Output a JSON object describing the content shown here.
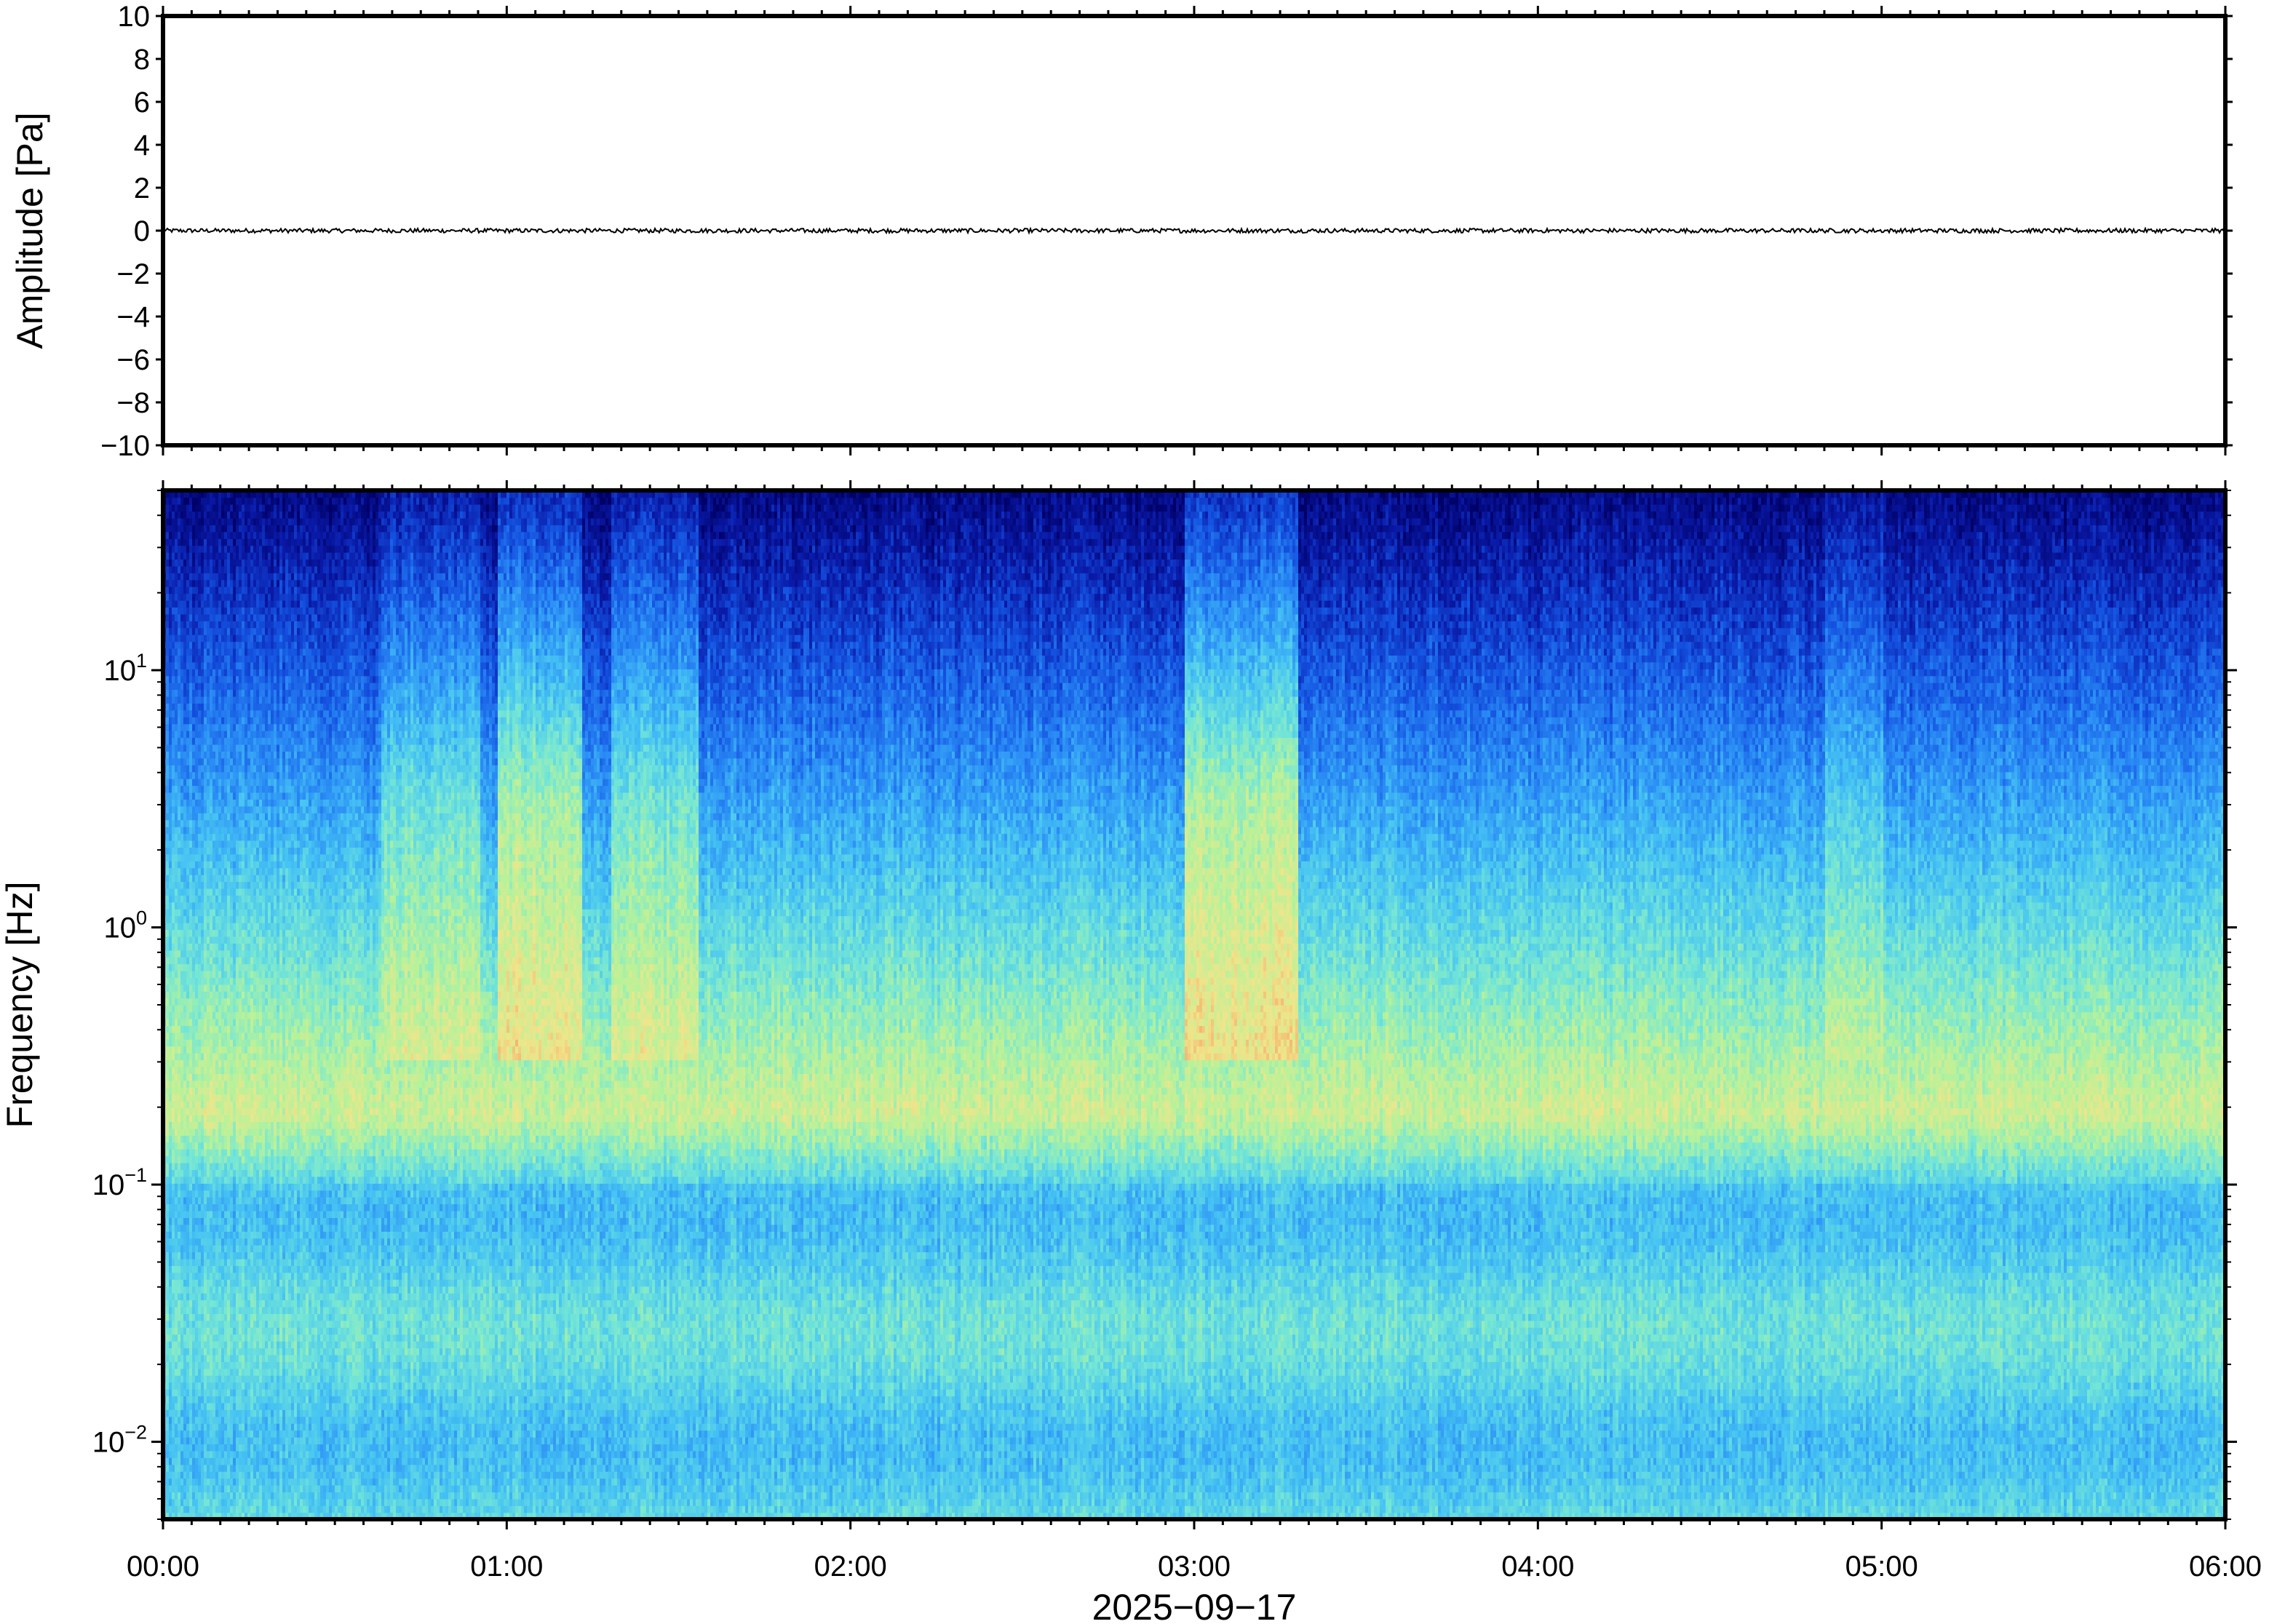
{
  "chart_data": [
    {
      "type": "line",
      "panel": "waveform",
      "ylabel": "Amplitude [Pa]",
      "ylim": [
        -10,
        10
      ],
      "yticks": [
        10,
        8,
        6,
        4,
        2,
        0,
        -2,
        -4,
        -6,
        -8,
        -10
      ],
      "ytick_labels": [
        "10",
        "8",
        "6",
        "4",
        "2",
        "0",
        "−2",
        "−4",
        "−6",
        "−8",
        "−10"
      ],
      "xlim": [
        "00:00",
        "06:00"
      ],
      "series": [
        {
          "color": "#000000",
          "description_values": {
            "mean": 0,
            "approx_peak_abs": 0.1
          }
        }
      ]
    },
    {
      "type": "heatmap",
      "panel": "spectrogram",
      "ylabel": "Frequency [Hz]",
      "yscale": "log",
      "ylim_hz": [
        0.005,
        50
      ],
      "ytick_values": [
        0.01,
        0.1,
        1,
        10
      ],
      "ytick_labels": [
        {
          "base": "10",
          "exp": "−2"
        },
        {
          "base": "10",
          "exp": "−1"
        },
        {
          "base": "10",
          "exp": "0"
        },
        {
          "base": "10",
          "exp": "1"
        }
      ],
      "xlim": [
        "00:00",
        "06:00"
      ],
      "colormap": [
        "#000066",
        "#0a1aa8",
        "#1452e0",
        "#2a8cf5",
        "#46c3f3",
        "#74e6d6",
        "#b6f29a",
        "#f0e58a",
        "#f5a86a"
      ],
      "bands": [
        {
          "f_low_hz": 0.15,
          "f_high_hz": 0.25,
          "level": 0.82
        },
        {
          "f_low_hz": 0.005,
          "f_high_hz": 0.15,
          "level": 0.55
        },
        {
          "f_low_hz": 1,
          "f_high_hz": 3,
          "level": 0.4
        },
        {
          "f_low_hz": 10,
          "f_high_hz": 50,
          "level": 0.08
        }
      ],
      "bursts": [
        {
          "start": "00:38",
          "end": "00:55",
          "level_boost": 0.18
        },
        {
          "start": "00:58",
          "end": "01:13",
          "level_boost": 0.3
        },
        {
          "start": "01:18",
          "end": "01:33",
          "level_boost": 0.2
        },
        {
          "start": "02:58",
          "end": "03:18",
          "level_boost": 0.32
        },
        {
          "start": "04:50",
          "end": "05:00",
          "level_boost": 0.1
        }
      ]
    }
  ],
  "xaxis": {
    "tick_labels": [
      "00:00",
      "01:00",
      "02:00",
      "03:00",
      "04:00",
      "05:00",
      "06:00"
    ],
    "date_label": "2025−09−17"
  }
}
